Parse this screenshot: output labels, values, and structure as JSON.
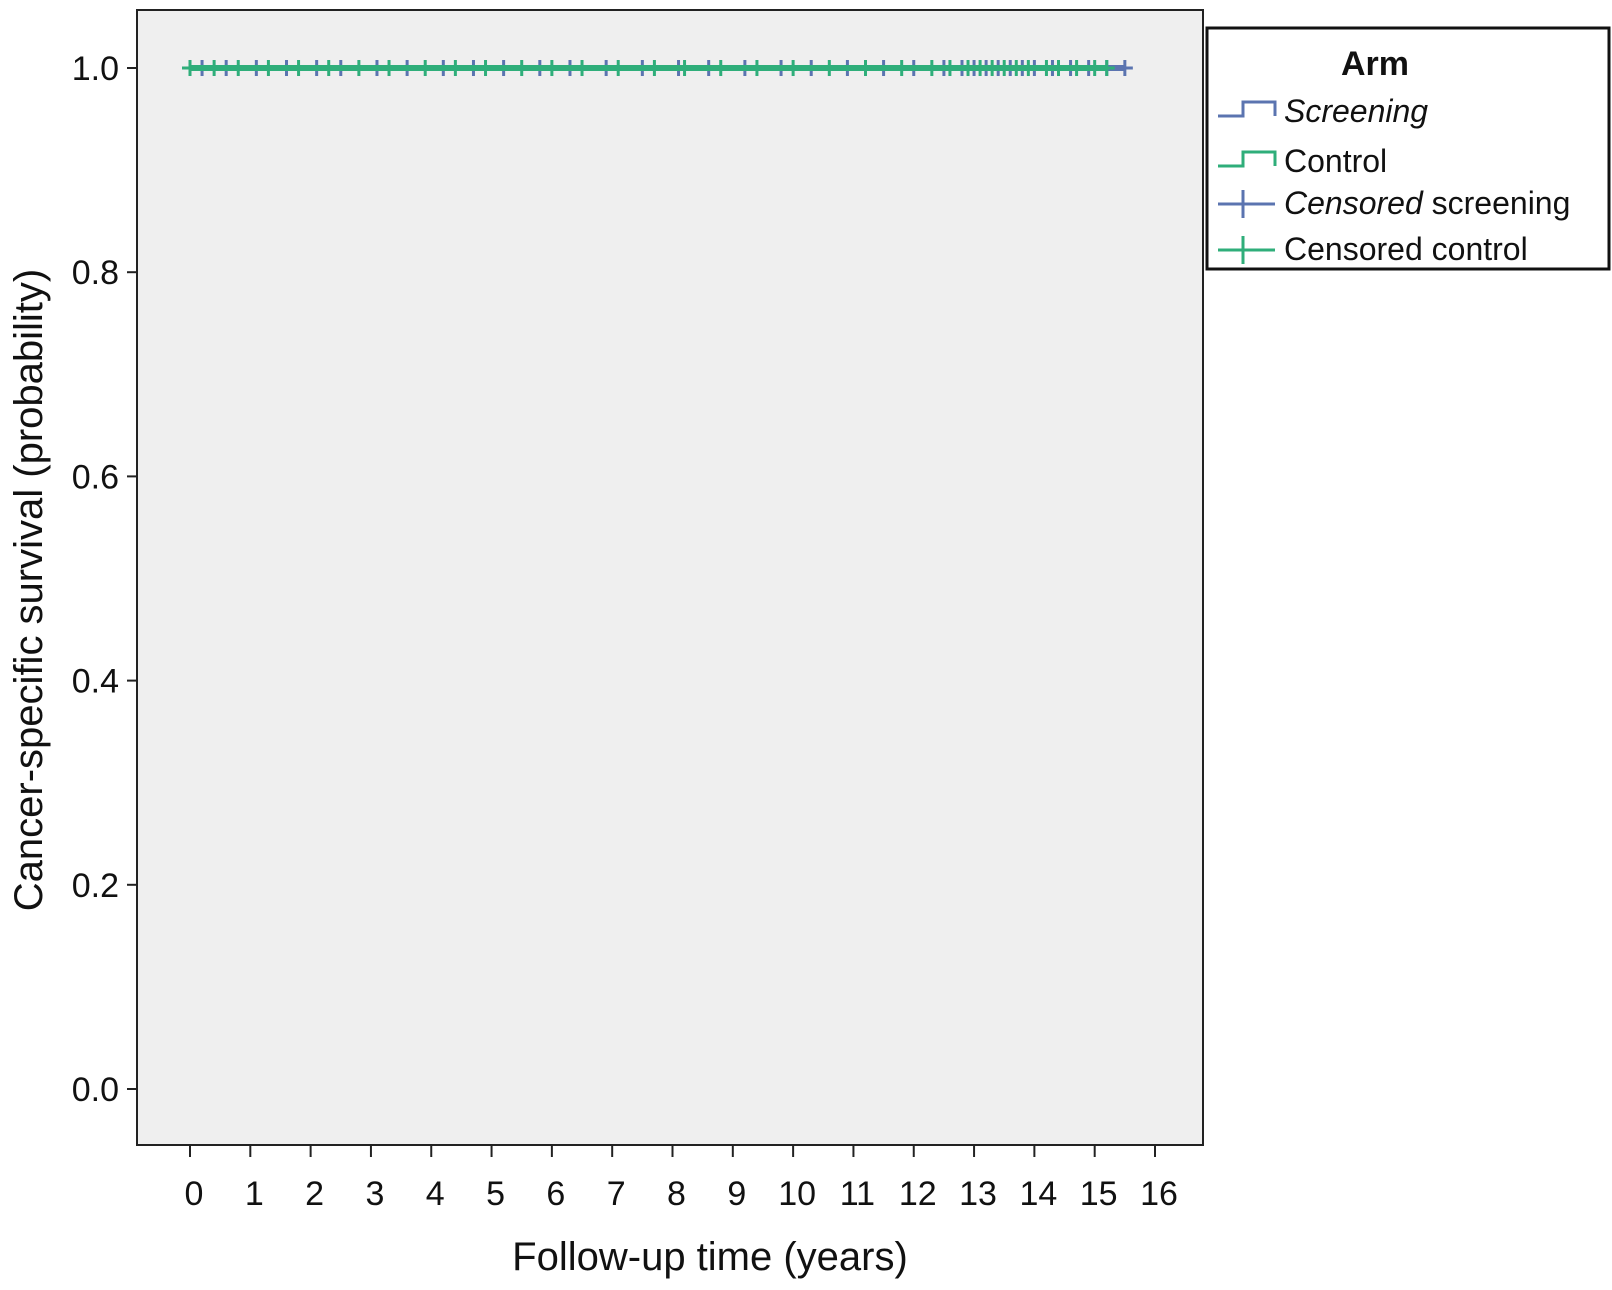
{
  "chart_data": {
    "type": "line",
    "title": "",
    "xlabel": "Follow-up time (years)",
    "ylabel": "Cancer-specific survival (probability)",
    "xlim": [
      0,
      16
    ],
    "ylim": [
      0.0,
      1.0
    ],
    "x_ticks": [
      "0",
      "1",
      "2",
      "3",
      "4",
      "5",
      "6",
      "7",
      "8",
      "9",
      "10",
      "11",
      "12",
      "13",
      "14",
      "15",
      "16"
    ],
    "y_ticks": [
      "0.0",
      "0.2",
      "0.4",
      "0.6",
      "0.8",
      "1.0"
    ],
    "grid": false,
    "plot_background": "#efefef",
    "legend": {
      "title": "Arm",
      "placement": "top-right outside",
      "entries": [
        {
          "prefix": "",
          "label": "Screening",
          "style": "step",
          "color": "#5b74b0",
          "italic_part": "Screening",
          "plain_part": ""
        },
        {
          "prefix": "",
          "label": "Control",
          "style": "step",
          "color": "#2fae7a",
          "italic_part": "",
          "plain_part": "Control"
        },
        {
          "prefix": "",
          "label": "Censored screening",
          "style": "cross",
          "color": "#5b74b0",
          "italic_part": "Censored",
          "plain_part": " screening"
        },
        {
          "prefix": "",
          "label": "Censored control",
          "style": "cross",
          "color": "#2fae7a",
          "italic_part": "",
          "plain_part": "Censored control"
        }
      ]
    },
    "series": [
      {
        "name": "Screening",
        "color": "#5b74b0",
        "x": [
          0,
          15.5
        ],
        "y": [
          1.0,
          1.0
        ],
        "censored_x": [
          0.2,
          0.6,
          1.1,
          1.6,
          2.1,
          2.5,
          3.1,
          3.6,
          4.2,
          4.7,
          5.2,
          5.8,
          6.3,
          6.9,
          7.5,
          8.1,
          8.6,
          9.2,
          9.8,
          10.3,
          10.9,
          11.5,
          12.0,
          12.5,
          12.8,
          13.0,
          13.2,
          13.4,
          13.6,
          13.8,
          14.0,
          14.3,
          14.6,
          14.9,
          15.2,
          15.5
        ]
      },
      {
        "name": "Control",
        "color": "#2fae7a",
        "x": [
          0,
          15.2
        ],
        "y": [
          1.0,
          1.0
        ],
        "censored_x": [
          0.0,
          0.4,
          0.8,
          1.3,
          1.8,
          2.3,
          2.8,
          3.3,
          3.9,
          4.4,
          4.9,
          5.5,
          6.0,
          6.5,
          7.1,
          7.7,
          8.2,
          8.8,
          9.4,
          10.0,
          10.6,
          11.2,
          11.8,
          12.3,
          12.6,
          12.9,
          13.1,
          13.3,
          13.5,
          13.7,
          13.9,
          14.2,
          14.4,
          14.7,
          15.0,
          15.2
        ]
      }
    ]
  }
}
